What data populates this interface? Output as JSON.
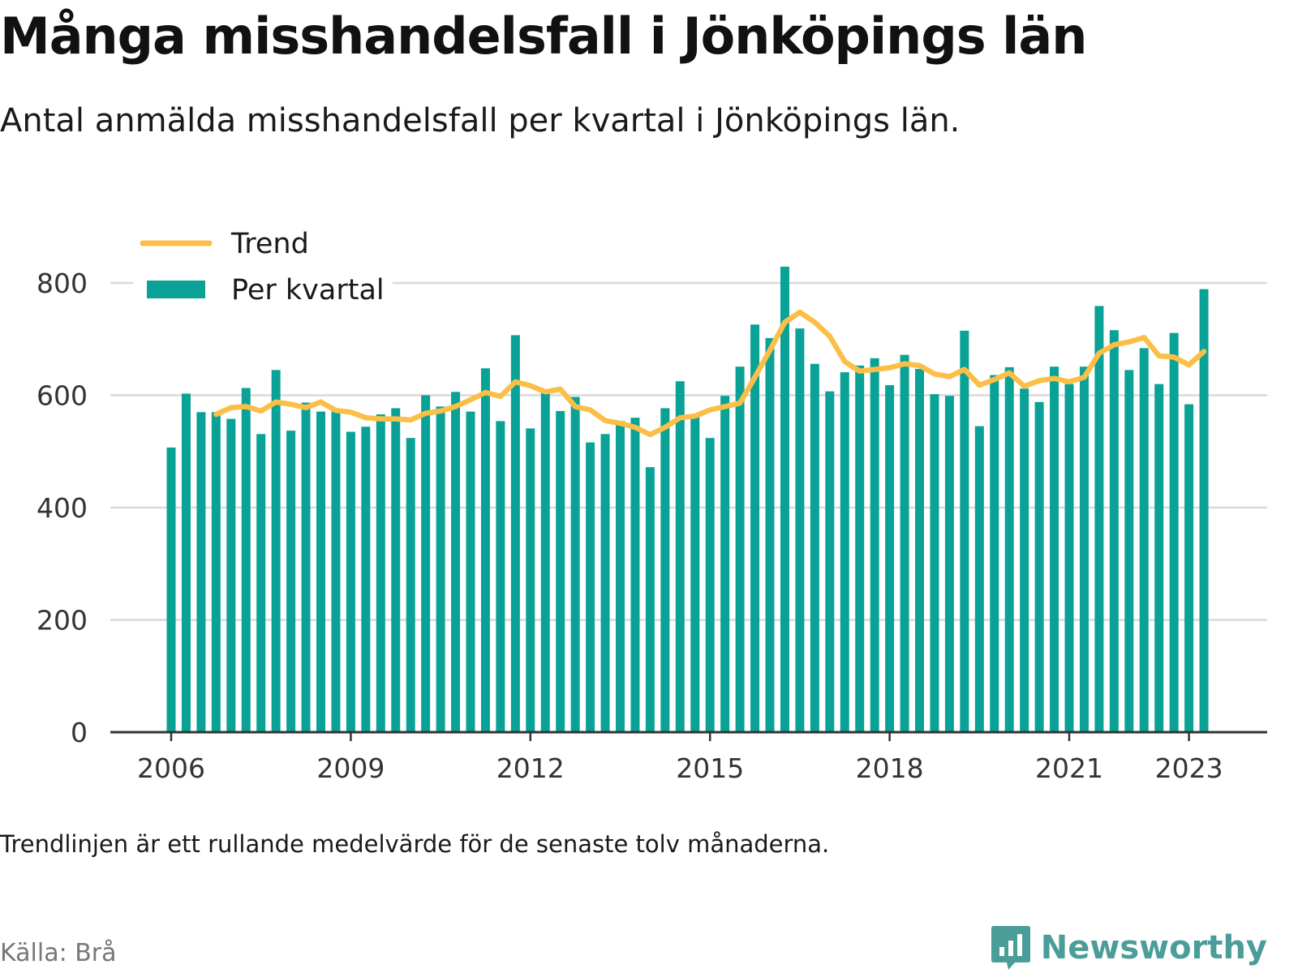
{
  "title": "Många misshandelsfall i Jönköpings län",
  "subtitle": "Antal anmälda misshandelsfall per kvartal i Jönköpings län.",
  "footnote": "Trendlinjen är ett rullande medelvärde för de senaste tolv månaderna.",
  "source": "Källa: Brå",
  "brand": {
    "name": "Newsworthy",
    "icon": "newsworthy-logo-icon"
  },
  "colors": {
    "bars": "#0aa296",
    "trend": "#fbbf47",
    "grid": "#d9d9d9",
    "axis": "#333333",
    "brand": "#4a9d98"
  },
  "chart_data": {
    "type": "bar",
    "x_start": "2006 Q1",
    "ylim": [
      0,
      800
    ],
    "yticks": [
      0,
      200,
      400,
      600,
      800
    ],
    "ytick_labels": [
      "0",
      "200",
      "400",
      "600",
      "800"
    ],
    "xticks": [
      {
        "label": "2006",
        "quarter_index": 0
      },
      {
        "label": "2009",
        "quarter_index": 12
      },
      {
        "label": "2012",
        "quarter_index": 24
      },
      {
        "label": "2015",
        "quarter_index": 36
      },
      {
        "label": "2018",
        "quarter_index": 48
      },
      {
        "label": "2021",
        "quarter_index": 60
      },
      {
        "label": "2023",
        "quarter_index": 68
      }
    ],
    "grid": true,
    "legend_position": "top-left",
    "series": [
      {
        "name": "Per kvartal",
        "type": "bar",
        "values": [
          507,
          603,
          570,
          570,
          558,
          613,
          531,
          645,
          537,
          587,
          571,
          571,
          535,
          544,
          566,
          577,
          524,
          600,
          580,
          606,
          571,
          648,
          554,
          707,
          541,
          604,
          572,
          597,
          516,
          531,
          554,
          560,
          472,
          577,
          625,
          566,
          524,
          599,
          651,
          726,
          702,
          829,
          719,
          656,
          607,
          641,
          653,
          666,
          618,
          672,
          647,
          602,
          599,
          715,
          545,
          636,
          650,
          612,
          588,
          651,
          620,
          651,
          759,
          716,
          645,
          684,
          620,
          711,
          584,
          789
        ]
      },
      {
        "name": "Trend",
        "type": "line",
        "start_index": 3,
        "values": [
          566,
          578,
          580,
          572,
          588,
          584,
          578,
          588,
          573,
          570,
          560,
          558,
          558,
          556,
          568,
          572,
          580,
          592,
          605,
          598,
          624,
          617,
          606,
          611,
          580,
          574,
          555,
          550,
          543,
          530,
          543,
          560,
          563,
          574,
          580,
          586,
          632,
          680,
          730,
          748,
          730,
          705,
          660,
          643,
          646,
          649,
          656,
          653,
          638,
          633,
          646,
          618,
          628,
          640,
          616,
          626,
          630,
          624,
          632,
          675,
          690,
          695,
          703,
          670,
          668,
          654,
          678
        ]
      }
    ]
  }
}
